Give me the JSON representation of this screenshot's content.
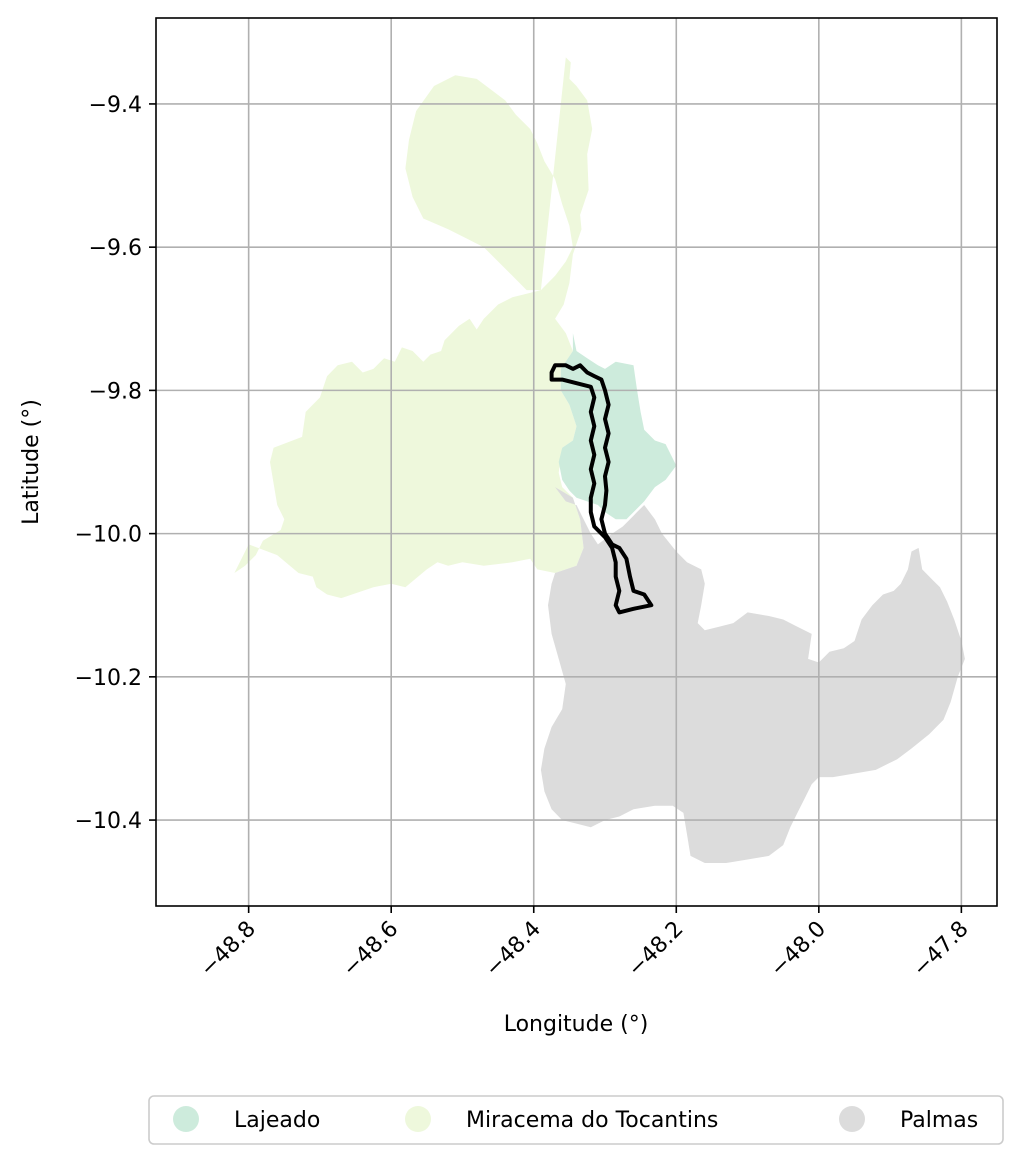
{
  "chart_data": {
    "type": "map",
    "xlabel": "Longitude (°)",
    "ylabel": "Latitude (°)",
    "xlim": [
      -48.93,
      -47.75
    ],
    "ylim": [
      -10.52,
      -9.28
    ],
    "x_ticks": [
      -48.8,
      -48.6,
      -48.4,
      -48.2,
      -48.0,
      -47.8
    ],
    "x_tick_labels": [
      "−48.8",
      "−48.6",
      "−48.4",
      "−48.2",
      "−48.0",
      "−47.8"
    ],
    "y_ticks": [
      -9.4,
      -9.6,
      -9.8,
      -10.0,
      -10.2,
      -10.4
    ],
    "y_tick_labels": [
      "−9.4",
      "−9.6",
      "−9.8",
      "−10.0",
      "−10.2",
      "−10.4"
    ],
    "grid": true,
    "legend_position": "bottom-center",
    "legend": [
      {
        "label": "Lajeado",
        "color": "#cdebdc"
      },
      {
        "label": "Miracema do Tocantins",
        "color": "#eef8dc"
      },
      {
        "label": "Palmas",
        "color": "#dcdcdc"
      }
    ],
    "regions": [
      {
        "name": "Miracema do Tocantins",
        "color": "#eef8dc",
        "coords": [
          [
            -48.355,
            -9.335
          ],
          [
            -48.348,
            -9.342
          ],
          [
            -48.35,
            -9.365
          ],
          [
            -48.34,
            -9.375
          ],
          [
            -48.325,
            -9.395
          ],
          [
            -48.318,
            -9.435
          ],
          [
            -48.325,
            -9.47
          ],
          [
            -48.323,
            -9.52
          ],
          [
            -48.335,
            -9.555
          ],
          [
            -48.333,
            -9.575
          ],
          [
            -48.345,
            -9.61
          ],
          [
            -48.35,
            -9.65
          ],
          [
            -48.358,
            -9.68
          ],
          [
            -48.37,
            -9.7
          ],
          [
            -48.355,
            -9.72
          ],
          [
            -48.345,
            -9.745
          ],
          [
            -48.362,
            -9.77
          ],
          [
            -48.362,
            -9.8
          ],
          [
            -48.35,
            -9.82
          ],
          [
            -48.34,
            -9.85
          ],
          [
            -48.345,
            -9.87
          ],
          [
            -48.36,
            -9.88
          ],
          [
            -48.365,
            -9.915
          ],
          [
            -48.36,
            -9.935
          ],
          [
            -48.345,
            -9.95
          ],
          [
            -48.335,
            -9.98
          ],
          [
            -48.33,
            -10.02
          ],
          [
            -48.34,
            -10.045
          ],
          [
            -48.37,
            -10.055
          ],
          [
            -48.395,
            -10.05
          ],
          [
            -48.405,
            -10.035
          ],
          [
            -48.43,
            -10.04
          ],
          [
            -48.47,
            -10.045
          ],
          [
            -48.5,
            -10.04
          ],
          [
            -48.52,
            -10.045
          ],
          [
            -48.535,
            -10.04
          ],
          [
            -48.55,
            -10.05
          ],
          [
            -48.58,
            -10.075
          ],
          [
            -48.6,
            -10.07
          ],
          [
            -48.625,
            -10.075
          ],
          [
            -48.64,
            -10.08
          ],
          [
            -48.67,
            -10.09
          ],
          [
            -48.69,
            -10.085
          ],
          [
            -48.705,
            -10.075
          ],
          [
            -48.71,
            -10.06
          ],
          [
            -48.73,
            -10.055
          ],
          [
            -48.76,
            -10.03
          ],
          [
            -48.8,
            -10.015
          ],
          [
            -48.82,
            -10.055
          ],
          [
            -48.805,
            -10.045
          ],
          [
            -48.79,
            -10.03
          ],
          [
            -48.78,
            -10.01
          ],
          [
            -48.755,
            -9.995
          ],
          [
            -48.75,
            -9.98
          ],
          [
            -48.76,
            -9.96
          ],
          [
            -48.765,
            -9.93
          ],
          [
            -48.77,
            -9.9
          ],
          [
            -48.765,
            -9.88
          ],
          [
            -48.725,
            -9.865
          ],
          [
            -48.72,
            -9.83
          ],
          [
            -48.7,
            -9.81
          ],
          [
            -48.69,
            -9.78
          ],
          [
            -48.675,
            -9.765
          ],
          [
            -48.655,
            -9.76
          ],
          [
            -48.64,
            -9.775
          ],
          [
            -48.625,
            -9.77
          ],
          [
            -48.61,
            -9.755
          ],
          [
            -48.595,
            -9.76
          ],
          [
            -48.585,
            -9.74
          ],
          [
            -48.57,
            -9.745
          ],
          [
            -48.555,
            -9.76
          ],
          [
            -48.545,
            -9.75
          ],
          [
            -48.53,
            -9.745
          ],
          [
            -48.525,
            -9.73
          ],
          [
            -48.505,
            -9.71
          ],
          [
            -48.49,
            -9.7
          ],
          [
            -48.48,
            -9.715
          ],
          [
            -48.47,
            -9.7
          ],
          [
            -48.45,
            -9.68
          ],
          [
            -48.43,
            -9.67
          ],
          [
            -48.41,
            -9.665
          ],
          [
            -48.39,
            -9.66
          ],
          [
            -48.37,
            -9.64
          ],
          [
            -48.355,
            -9.62
          ],
          [
            -48.345,
            -9.6
          ],
          [
            -48.35,
            -9.57
          ],
          [
            -48.36,
            -9.54
          ],
          [
            -48.37,
            -9.505
          ],
          [
            -48.385,
            -9.48
          ],
          [
            -48.395,
            -9.455
          ],
          [
            -48.405,
            -9.435
          ],
          [
            -48.425,
            -9.415
          ],
          [
            -48.44,
            -9.395
          ],
          [
            -48.46,
            -9.38
          ],
          [
            -48.48,
            -9.365
          ],
          [
            -48.51,
            -9.36
          ],
          [
            -48.54,
            -9.375
          ],
          [
            -48.565,
            -9.41
          ],
          [
            -48.575,
            -9.45
          ],
          [
            -48.58,
            -9.49
          ],
          [
            -48.57,
            -9.53
          ],
          [
            -48.555,
            -9.56
          ],
          [
            -48.52,
            -9.575
          ],
          [
            -48.49,
            -9.59
          ],
          [
            -48.47,
            -9.6
          ],
          [
            -48.45,
            -9.62
          ],
          [
            -48.43,
            -9.64
          ],
          [
            -48.41,
            -9.66
          ],
          [
            -48.39,
            -9.66
          ]
        ]
      },
      {
        "name": "Lajeado",
        "color": "#cdebdc",
        "coords": [
          [
            -48.345,
            -9.72
          ],
          [
            -48.34,
            -9.745
          ],
          [
            -48.325,
            -9.755
          ],
          [
            -48.31,
            -9.765
          ],
          [
            -48.3,
            -9.77
          ],
          [
            -48.285,
            -9.76
          ],
          [
            -48.26,
            -9.765
          ],
          [
            -48.255,
            -9.8
          ],
          [
            -48.25,
            -9.83
          ],
          [
            -48.245,
            -9.855
          ],
          [
            -48.23,
            -9.87
          ],
          [
            -48.215,
            -9.875
          ],
          [
            -48.2,
            -9.905
          ],
          [
            -48.215,
            -9.925
          ],
          [
            -48.23,
            -9.935
          ],
          [
            -48.245,
            -9.955
          ],
          [
            -48.26,
            -9.97
          ],
          [
            -48.27,
            -9.98
          ],
          [
            -48.285,
            -9.98
          ],
          [
            -48.3,
            -9.97
          ],
          [
            -48.31,
            -9.96
          ],
          [
            -48.325,
            -9.955
          ],
          [
            -48.34,
            -9.95
          ],
          [
            -48.35,
            -9.94
          ],
          [
            -48.36,
            -9.925
          ],
          [
            -48.365,
            -9.9
          ],
          [
            -48.36,
            -9.88
          ],
          [
            -48.345,
            -9.87
          ],
          [
            -48.34,
            -9.85
          ],
          [
            -48.35,
            -9.82
          ],
          [
            -48.362,
            -9.8
          ],
          [
            -48.362,
            -9.77
          ],
          [
            -48.345,
            -9.745
          ]
        ]
      },
      {
        "name": "Palmas",
        "color": "#dcdcdc",
        "coords": [
          [
            -48.37,
            -9.935
          ],
          [
            -48.355,
            -9.955
          ],
          [
            -48.34,
            -9.96
          ],
          [
            -48.33,
            -9.98
          ],
          [
            -48.32,
            -10.0
          ],
          [
            -48.31,
            -10.015
          ],
          [
            -48.29,
            -10.0
          ],
          [
            -48.275,
            -9.99
          ],
          [
            -48.26,
            -9.975
          ],
          [
            -48.25,
            -9.965
          ],
          [
            -48.245,
            -9.96
          ],
          [
            -48.23,
            -9.98
          ],
          [
            -48.22,
            -10.0
          ],
          [
            -48.2,
            -10.025
          ],
          [
            -48.185,
            -10.04
          ],
          [
            -48.165,
            -10.05
          ],
          [
            -48.16,
            -10.07
          ],
          [
            -48.165,
            -10.1
          ],
          [
            -48.17,
            -10.125
          ],
          [
            -48.16,
            -10.135
          ],
          [
            -48.14,
            -10.13
          ],
          [
            -48.12,
            -10.125
          ],
          [
            -48.1,
            -10.11
          ],
          [
            -48.07,
            -10.115
          ],
          [
            -48.05,
            -10.12
          ],
          [
            -48.03,
            -10.13
          ],
          [
            -48.01,
            -10.14
          ],
          [
            -48.015,
            -10.175
          ],
          [
            -48.0,
            -10.18
          ],
          [
            -47.985,
            -10.165
          ],
          [
            -47.965,
            -10.16
          ],
          [
            -47.95,
            -10.15
          ],
          [
            -47.94,
            -10.12
          ],
          [
            -47.925,
            -10.1
          ],
          [
            -47.91,
            -10.085
          ],
          [
            -47.895,
            -10.08
          ],
          [
            -47.885,
            -10.07
          ],
          [
            -47.875,
            -10.05
          ],
          [
            -47.87,
            -10.025
          ],
          [
            -47.86,
            -10.02
          ],
          [
            -47.855,
            -10.05
          ],
          [
            -47.84,
            -10.065
          ],
          [
            -47.83,
            -10.075
          ],
          [
            -47.82,
            -10.095
          ],
          [
            -47.81,
            -10.12
          ],
          [
            -47.8,
            -10.15
          ],
          [
            -47.795,
            -10.175
          ],
          [
            -47.805,
            -10.2
          ],
          [
            -47.815,
            -10.235
          ],
          [
            -47.825,
            -10.26
          ],
          [
            -47.845,
            -10.28
          ],
          [
            -47.87,
            -10.3
          ],
          [
            -47.89,
            -10.315
          ],
          [
            -47.92,
            -10.33
          ],
          [
            -47.95,
            -10.335
          ],
          [
            -47.98,
            -10.34
          ],
          [
            -48.0,
            -10.34
          ],
          [
            -48.01,
            -10.35
          ],
          [
            -48.02,
            -10.37
          ],
          [
            -48.03,
            -10.39
          ],
          [
            -48.04,
            -10.41
          ],
          [
            -48.05,
            -10.435
          ],
          [
            -48.07,
            -10.45
          ],
          [
            -48.1,
            -10.455
          ],
          [
            -48.13,
            -10.46
          ],
          [
            -48.16,
            -10.46
          ],
          [
            -48.18,
            -10.45
          ],
          [
            -48.185,
            -10.42
          ],
          [
            -48.19,
            -10.39
          ],
          [
            -48.205,
            -10.38
          ],
          [
            -48.23,
            -10.38
          ],
          [
            -48.26,
            -10.385
          ],
          [
            -48.28,
            -10.395
          ],
          [
            -48.3,
            -10.4
          ],
          [
            -48.32,
            -10.41
          ],
          [
            -48.34,
            -10.405
          ],
          [
            -48.36,
            -10.4
          ],
          [
            -48.375,
            -10.385
          ],
          [
            -48.385,
            -10.36
          ],
          [
            -48.39,
            -10.33
          ],
          [
            -48.385,
            -10.3
          ],
          [
            -48.375,
            -10.27
          ],
          [
            -48.36,
            -10.245
          ],
          [
            -48.355,
            -10.21
          ],
          [
            -48.365,
            -10.175
          ],
          [
            -48.375,
            -10.14
          ],
          [
            -48.38,
            -10.1
          ],
          [
            -48.375,
            -10.07
          ],
          [
            -48.37,
            -10.055
          ],
          [
            -48.34,
            -10.045
          ],
          [
            -48.33,
            -10.02
          ],
          [
            -48.335,
            -9.98
          ],
          [
            -48.345,
            -9.95
          ]
        ]
      }
    ],
    "outline": {
      "color": "#000000",
      "coords": [
        [
          -48.37,
          -9.765
        ],
        [
          -48.355,
          -9.765
        ],
        [
          -48.345,
          -9.77
        ],
        [
          -48.335,
          -9.765
        ],
        [
          -48.325,
          -9.775
        ],
        [
          -48.315,
          -9.78
        ],
        [
          -48.305,
          -9.785
        ],
        [
          -48.3,
          -9.8
        ],
        [
          -48.295,
          -9.82
        ],
        [
          -48.3,
          -9.84
        ],
        [
          -48.295,
          -9.86
        ],
        [
          -48.3,
          -9.88
        ],
        [
          -48.295,
          -9.9
        ],
        [
          -48.3,
          -9.92
        ],
        [
          -48.298,
          -9.94
        ],
        [
          -48.3,
          -9.96
        ],
        [
          -48.305,
          -9.98
        ],
        [
          -48.3,
          -10.0
        ],
        [
          -48.29,
          -10.015
        ],
        [
          -48.28,
          -10.02
        ],
        [
          -48.27,
          -10.035
        ],
        [
          -48.265,
          -10.06
        ],
        [
          -48.26,
          -10.08
        ],
        [
          -48.245,
          -10.085
        ],
        [
          -48.235,
          -10.1
        ],
        [
          -48.26,
          -10.105
        ],
        [
          -48.28,
          -10.11
        ],
        [
          -48.285,
          -10.1
        ],
        [
          -48.28,
          -10.08
        ],
        [
          -48.285,
          -10.06
        ],
        [
          -48.285,
          -10.04
        ],
        [
          -48.29,
          -10.02
        ],
        [
          -48.3,
          -10.005
        ],
        [
          -48.315,
          -9.99
        ],
        [
          -48.32,
          -9.97
        ],
        [
          -48.32,
          -9.95
        ],
        [
          -48.315,
          -9.93
        ],
        [
          -48.32,
          -9.91
        ],
        [
          -48.315,
          -9.89
        ],
        [
          -48.32,
          -9.87
        ],
        [
          -48.315,
          -9.85
        ],
        [
          -48.32,
          -9.83
        ],
        [
          -48.315,
          -9.81
        ],
        [
          -48.32,
          -9.795
        ],
        [
          -48.34,
          -9.79
        ],
        [
          -48.36,
          -9.785
        ],
        [
          -48.375,
          -9.785
        ],
        [
          -48.375,
          -9.775
        ]
      ]
    }
  }
}
